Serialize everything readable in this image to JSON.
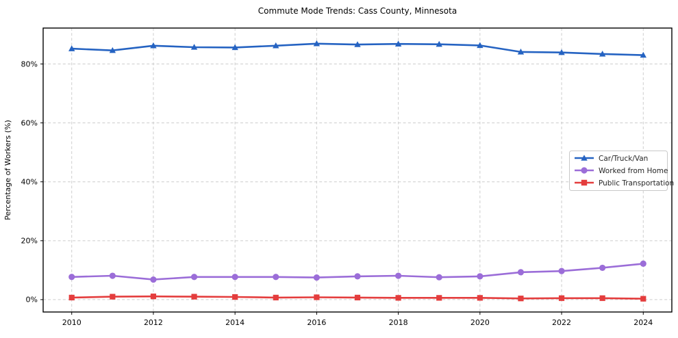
{
  "chart_data": {
    "type": "line",
    "title": "Commute Mode Trends: Cass County, Minnesota",
    "xlabel": "",
    "ylabel": "Percentage of Workers (%)",
    "x": [
      2010,
      2011,
      2012,
      2013,
      2014,
      2015,
      2016,
      2017,
      2018,
      2019,
      2020,
      2021,
      2022,
      2023,
      2024
    ],
    "series": [
      {
        "name": "Car/Truck/Van",
        "color": "#2563c2",
        "marker": "triangle",
        "values": [
          85.2,
          84.6,
          86.2,
          85.7,
          85.6,
          86.2,
          86.9,
          86.6,
          86.8,
          86.7,
          86.3,
          84.1,
          83.9,
          83.4,
          83.0
        ]
      },
      {
        "name": "Worked from Home",
        "color": "#9b6dd8",
        "marker": "circle",
        "values": [
          7.7,
          8.1,
          6.8,
          7.7,
          7.7,
          7.7,
          7.5,
          7.9,
          8.1,
          7.6,
          7.9,
          9.3,
          9.7,
          10.8,
          12.2
        ]
      },
      {
        "name": "Public Transportation",
        "color": "#e43d3d",
        "marker": "square",
        "values": [
          0.7,
          1.0,
          1.1,
          1.0,
          0.9,
          0.7,
          0.8,
          0.7,
          0.6,
          0.6,
          0.6,
          0.4,
          0.5,
          0.5,
          0.3
        ]
      }
    ],
    "xlim": [
      2009.3,
      2024.7
    ],
    "ylim": [
      -4.2,
      92.2
    ],
    "xticks": [
      {
        "value": 2010,
        "label": "2010"
      },
      {
        "value": 2012,
        "label": "2012"
      },
      {
        "value": 2014,
        "label": "2014"
      },
      {
        "value": 2016,
        "label": "2016"
      },
      {
        "value": 2018,
        "label": "2018"
      },
      {
        "value": 2020,
        "label": "2020"
      },
      {
        "value": 2022,
        "label": "2022"
      },
      {
        "value": 2024,
        "label": "2024"
      }
    ],
    "yticks": [
      {
        "value": 0,
        "label": "0%"
      },
      {
        "value": 20,
        "label": "20%"
      },
      {
        "value": 40,
        "label": "40%"
      },
      {
        "value": 60,
        "label": "60%"
      },
      {
        "value": 80,
        "label": "80%"
      }
    ],
    "grid": true,
    "legend_position": "center-right"
  }
}
